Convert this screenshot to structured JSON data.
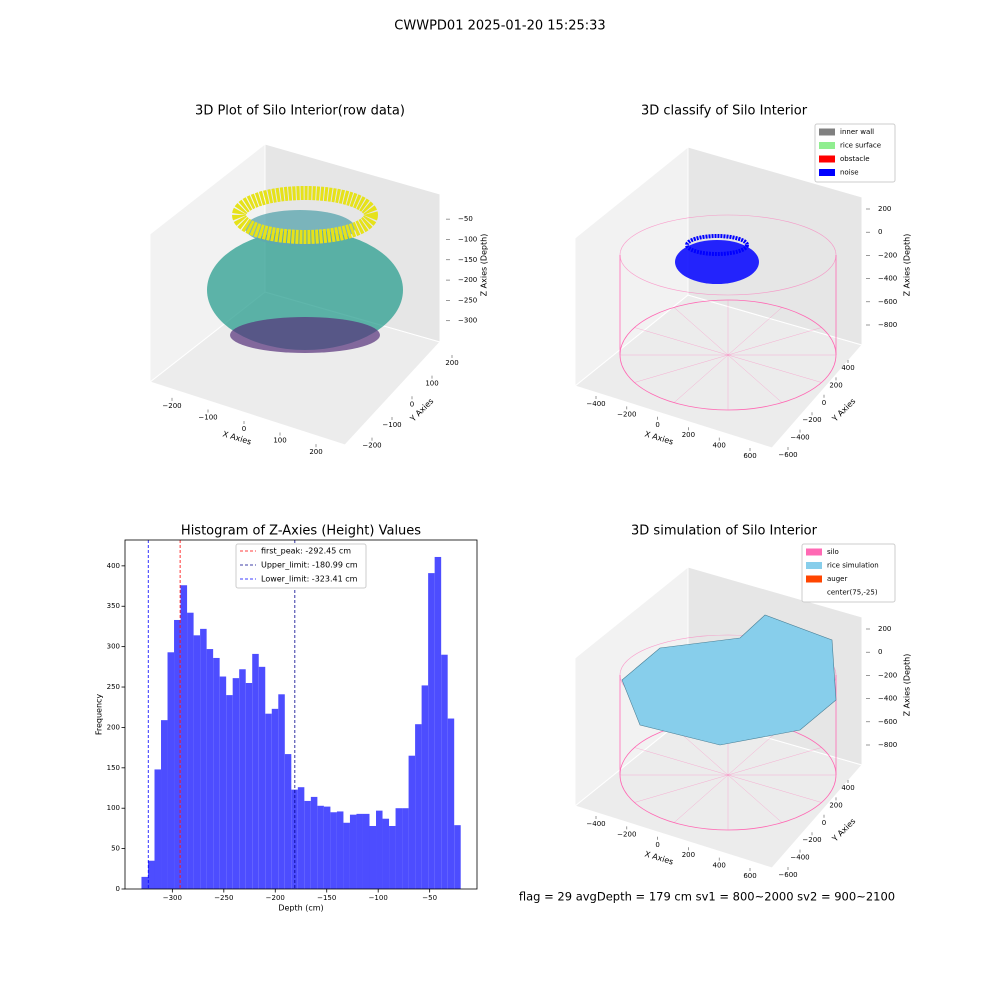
{
  "suptitle": "CWWPD01 2025-01-20 15:25:33",
  "footer": "flag = 29  avgDepth = 179 cm  sv1 = 800~2000  sv2 = 900~2100",
  "chart_data": [
    {
      "type": "scatter3d",
      "title": "3D Plot of Silo Interior(row data)",
      "xlabel": "X Axies",
      "ylabel": "Y Axies",
      "zlabel": "Z Axies (Depth)",
      "xlim": [
        -260,
        260
      ],
      "ylim": [
        -250,
        250
      ],
      "zlim": [
        -340,
        -30
      ],
      "xticks": [
        {
          "value": -200,
          "label": "−200"
        },
        {
          "value": -100,
          "label": "−100"
        },
        0,
        100,
        200
      ],
      "yticks": [
        {
          "value": -200,
          "label": "−200"
        },
        {
          "value": -100,
          "label": "−100"
        },
        0,
        100,
        200
      ],
      "zticks": [
        {
          "value": -50,
          "label": "−50"
        },
        {
          "value": -100,
          "label": "−100"
        },
        {
          "value": -150,
          "label": "−150"
        },
        {
          "value": -200,
          "label": "−200"
        },
        {
          "value": -250,
          "label": "−250"
        },
        {
          "value": -300,
          "label": "−300"
        }
      ]
    },
    {
      "type": "scatter3d",
      "title": "3D classify of Silo Interior",
      "xlabel": "X Axies",
      "ylabel": "Y Axies",
      "zlabel": "Z Axies (Depth)",
      "xlim": [
        -500,
        700
      ],
      "ylim": [
        -700,
        500
      ],
      "zlim": [
        -900,
        300
      ],
      "xticks": [
        {
          "value": -400,
          "label": "−400"
        },
        {
          "value": -200,
          "label": "−200"
        },
        0,
        200,
        400,
        600
      ],
      "yticks": [
        {
          "value": -600,
          "label": "−600"
        },
        {
          "value": -400,
          "label": "−400"
        },
        {
          "value": -200,
          "label": "−200"
        },
        0,
        200,
        400
      ],
      "zticks": [
        200,
        0,
        {
          "value": -200,
          "label": "−200"
        },
        {
          "value": -400,
          "label": "−400"
        },
        {
          "value": -600,
          "label": "−600"
        },
        {
          "value": -800,
          "label": "−800"
        }
      ],
      "legend": [
        {
          "name": "inner wall",
          "color": "#808080"
        },
        {
          "name": "rice surface",
          "color": "#90ee90"
        },
        {
          "name": "obstacle",
          "color": "#ff0000"
        },
        {
          "name": "noise",
          "color": "#0000ff"
        }
      ]
    },
    {
      "type": "histogram",
      "title": "Histogram of Z-Axies (Height) Values",
      "xlabel": "Depth (cm)",
      "ylabel": "Frequency",
      "color": "#4d4dff",
      "xlim": [
        -346,
        -4
      ],
      "ylim": [
        0,
        432
      ],
      "xticks": [
        {
          "value": -300,
          "label": "−300"
        },
        {
          "value": -250,
          "label": "−250"
        },
        {
          "value": -200,
          "label": "−200"
        },
        {
          "value": -150,
          "label": "−150"
        },
        {
          "value": -100,
          "label": "−100"
        },
        {
          "value": -50,
          "label": "−50"
        }
      ],
      "yticks": [
        0,
        50,
        100,
        150,
        200,
        250,
        300,
        350,
        400
      ],
      "bins": [
        -330,
        -323.67,
        -317.34,
        -311.01,
        -304.68,
        -298.35,
        -292.02,
        -285.69,
        -279.36,
        -273.03,
        -266.7,
        -260.37,
        -254.04,
        -247.71,
        -241.38,
        -235.05,
        -228.72,
        -222.39,
        -216.06,
        -209.73,
        -203.4,
        -197.07,
        -190.74,
        -184.41,
        -178.08,
        -171.75,
        -165.42,
        -159.09,
        -152.76,
        -146.43,
        -140.1,
        -133.77,
        -127.44,
        -121.11,
        -114.78,
        -108.45,
        -102.12,
        -95.79,
        -89.46,
        -83.13,
        -76.8,
        -70.47,
        -64.14,
        -57.81,
        -51.48,
        -45.15,
        -38.82,
        -32.49,
        -26.16,
        -19.83
      ],
      "values": [
        15,
        35,
        148,
        209,
        293,
        333,
        376,
        342,
        314,
        322,
        297,
        286,
        263,
        240,
        261,
        272,
        255,
        291,
        275,
        217,
        223,
        241,
        167,
        123,
        126,
        109,
        114,
        103,
        102,
        95,
        96,
        82,
        92,
        93,
        93,
        78,
        97,
        87,
        78,
        100,
        100,
        165,
        204,
        252,
        391,
        411,
        290,
        211,
        79
      ],
      "vlines": [
        {
          "value": -292.45,
          "label": "first_peak: -292.45 cm",
          "color": "#ff0000"
        },
        {
          "value": -180.99,
          "label": "Upper_limit: -180.99 cm",
          "color": "#00008b"
        },
        {
          "value": -323.41,
          "label": "Lower_limit: -323.41 cm",
          "color": "#0000ff"
        }
      ]
    },
    {
      "type": "scatter3d",
      "title": "3D simulation of Silo Interior",
      "xlabel": "X Axies",
      "ylabel": "Y Axies",
      "zlabel": "Z Axies (Depth)",
      "xlim": [
        -500,
        700
      ],
      "ylim": [
        -700,
        500
      ],
      "zlim": [
        -900,
        300
      ],
      "xticks": [
        {
          "value": -400,
          "label": "−400"
        },
        {
          "value": -200,
          "label": "−200"
        },
        0,
        200,
        400,
        600
      ],
      "yticks": [
        {
          "value": -600,
          "label": "−600"
        },
        {
          "value": -400,
          "label": "−400"
        },
        {
          "value": -200,
          "label": "−200"
        },
        0,
        200,
        400
      ],
      "zticks": [
        200,
        0,
        {
          "value": -200,
          "label": "−200"
        },
        {
          "value": -400,
          "label": "−400"
        },
        {
          "value": -600,
          "label": "−600"
        },
        {
          "value": -800,
          "label": "−800"
        }
      ],
      "legend": [
        {
          "name": "silo",
          "color": "#ff69b4"
        },
        {
          "name": "rice simulation",
          "color": "#87ceeb"
        },
        {
          "name": "auger",
          "color": "#ff4500"
        },
        {
          "name": "center(75,-25)",
          "color": "#ffffff"
        }
      ]
    }
  ]
}
